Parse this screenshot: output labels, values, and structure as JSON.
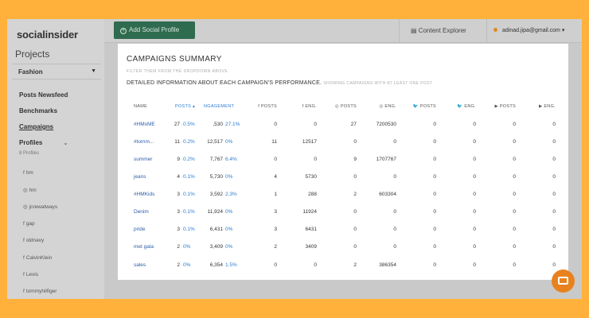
{
  "sidebar": {
    "logo": "socialinsider",
    "projects_title": "Projects",
    "project_selected": "Fashion",
    "nav": [
      "Posts Newsfeed",
      "Benchmarks",
      "Campaigns",
      "Profiles"
    ],
    "profiles_count": "8 Profiles",
    "profiles": [
      {
        "icon": "f",
        "name": "hm"
      },
      {
        "icon": "◎",
        "name": "hm"
      },
      {
        "icon": "◎",
        "name": "jcrewatways"
      },
      {
        "icon": "f",
        "name": "gap"
      },
      {
        "icon": "f",
        "name": "oldnavy"
      },
      {
        "icon": "f",
        "name": "CalvinKlein"
      },
      {
        "icon": "f",
        "name": "Levis"
      },
      {
        "icon": "f",
        "name": "tommyhilfiger"
      }
    ]
  },
  "topbar": {
    "add_label": "Add Social Profile",
    "explorer_label": "Content Explorer",
    "account_email": "adinad.jipa@gmail.com"
  },
  "modal": {
    "title": "CAMPAIGNS SUMMARY",
    "filter_hint": "FILTER THEM FROM THE DROPDOWN ABOVE",
    "detail": "DETAILED INFORMATION ABOUT EACH CAMPAIGN'S PERFORMANCE.",
    "detail_sub": "SHOWING CAMPAIGNS WITH AT LEAST ONE POST",
    "columns": [
      "NAME",
      "POSTS ▴",
      "NGAGEMENT",
      "f POSTS",
      "f ENG.",
      "◎ POSTS",
      "◎ ENG.",
      "🐦 POSTS",
      "🐦 ENG.",
      "▶ POSTS",
      "▶ ENG."
    ],
    "rows": [
      {
        "name": "#HMxME",
        "posts": "27",
        "posts_pct": "0.5%",
        "eng": ",530",
        "eng_pct": "27.1%",
        "fb_posts": "0",
        "fb_eng": "0",
        "ig_posts": "27",
        "ig_eng": "7200530",
        "tw_posts": "0",
        "tw_eng": "0",
        "yt_posts": "0",
        "yt_eng": "0"
      },
      {
        "name": "#tomm...",
        "posts": "11",
        "posts_pct": "0.2%",
        "eng": "12,517",
        "eng_pct": "0%",
        "fb_posts": "11",
        "fb_eng": "12517",
        "ig_posts": "0",
        "ig_eng": "0",
        "tw_posts": "0",
        "tw_eng": "0",
        "yt_posts": "0",
        "yt_eng": "0"
      },
      {
        "name": "summer",
        "posts": "9",
        "posts_pct": "0.2%",
        "eng": "7,767",
        "eng_pct": "6.4%",
        "fb_posts": "0",
        "fb_eng": "0",
        "ig_posts": "9",
        "ig_eng": "1707767",
        "tw_posts": "0",
        "tw_eng": "0",
        "yt_posts": "0",
        "yt_eng": "0"
      },
      {
        "name": "jeans",
        "posts": "4",
        "posts_pct": "0.1%",
        "eng": "5,730",
        "eng_pct": "0%",
        "fb_posts": "4",
        "fb_eng": "5730",
        "ig_posts": "0",
        "ig_eng": "0",
        "tw_posts": "0",
        "tw_eng": "0",
        "yt_posts": "0",
        "yt_eng": "0"
      },
      {
        "name": "#HMKids",
        "posts": "3",
        "posts_pct": "0.1%",
        "eng": "3,592",
        "eng_pct": "2.3%",
        "fb_posts": "1",
        "fb_eng": "288",
        "ig_posts": "2",
        "ig_eng": "603304",
        "tw_posts": "0",
        "tw_eng": "0",
        "yt_posts": "0",
        "yt_eng": "0"
      },
      {
        "name": "Denim",
        "posts": "3",
        "posts_pct": "0.1%",
        "eng": "11,924",
        "eng_pct": "0%",
        "fb_posts": "3",
        "fb_eng": "11924",
        "ig_posts": "0",
        "ig_eng": "0",
        "tw_posts": "0",
        "tw_eng": "0",
        "yt_posts": "0",
        "yt_eng": "0"
      },
      {
        "name": "pride",
        "posts": "3",
        "posts_pct": "0.1%",
        "eng": "6,431",
        "eng_pct": "0%",
        "fb_posts": "3",
        "fb_eng": "6431",
        "ig_posts": "0",
        "ig_eng": "0",
        "tw_posts": "0",
        "tw_eng": "0",
        "yt_posts": "0",
        "yt_eng": "0"
      },
      {
        "name": "met gala",
        "posts": "2",
        "posts_pct": "0%",
        "eng": "3,409",
        "eng_pct": "0%",
        "fb_posts": "2",
        "fb_eng": "3409",
        "ig_posts": "0",
        "ig_eng": "0",
        "tw_posts": "0",
        "tw_eng": "0",
        "yt_posts": "0",
        "yt_eng": "0"
      },
      {
        "name": "sales",
        "posts": "2",
        "posts_pct": "0%",
        "eng": "6,354",
        "eng_pct": "1.5%",
        "fb_posts": "0",
        "fb_eng": "0",
        "ig_posts": "2",
        "ig_eng": "386354",
        "tw_posts": "0",
        "tw_eng": "0",
        "yt_posts": "0",
        "yt_eng": "0"
      }
    ]
  },
  "colors": {
    "accent": "#2b7bd4",
    "brand_green": "#2f6b4e",
    "background": "#ffb13b",
    "chat": "#e8821e"
  }
}
